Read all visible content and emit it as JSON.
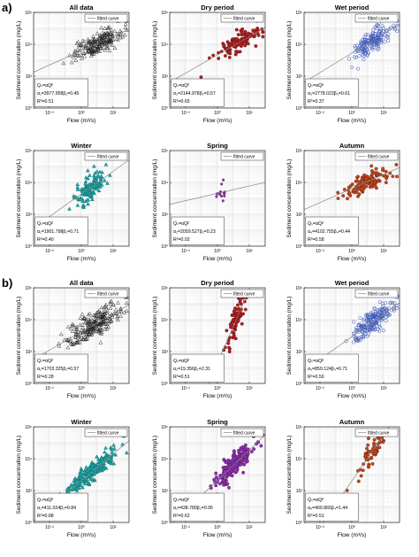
{
  "figure": {
    "panel_labels": [
      "a)",
      "b)"
    ],
    "ylabel": "Sediment concentration (mg/L)",
    "xlabel": "Flow (m³/s)",
    "legend_label": "fitted curve",
    "y_ticks": [
      "10⁰",
      "10²",
      "10⁴",
      "10⁶"
    ],
    "x_ticks": [
      "10⁻²",
      "10⁰",
      "10²"
    ],
    "formula_text": "Qₛ=αQᵝ"
  },
  "colors": {
    "all": "#222222",
    "dry": "#b01e1e",
    "wet": "#3a55b8",
    "winter": "#21a8a8",
    "spring": "#8a2fb8",
    "autumn": "#c0451a",
    "fit": "#888888"
  },
  "chart_data": [
    {
      "type": "scatter",
      "group": "a",
      "title": "All data",
      "marker": "triangle-open",
      "color": "all",
      "xlim": [
        -3,
        3
      ],
      "ylim": [
        0,
        6
      ],
      "log_axes": true,
      "grid": true,
      "legend": "top-right",
      "alpha": 3977.958,
      "beta": 0.45,
      "r2": 0.51,
      "alpha_text": "α₁=3977.958",
      "beta_text": "β₁=0.45",
      "r2_text": "R²=0.51",
      "cloud": {
        "x_center": 1.0,
        "x_spread": 1.4,
        "y_sd": 0.32,
        "n": 220,
        "y_cap": 5.45
      }
    },
    {
      "type": "scatter",
      "group": "a",
      "title": "Dry period",
      "marker": "dot",
      "color": "dry",
      "xlim": [
        -3,
        3
      ],
      "ylim": [
        0,
        6
      ],
      "log_axes": true,
      "grid": true,
      "legend": "top-right",
      "alpha": 2144.978,
      "beta": 0.57,
      "r2": 0.65,
      "alpha_text": "α₂=2144.978",
      "beta_text": "β₂=0.57",
      "r2_text": "R²=0.65",
      "cloud": {
        "x_center": 1.3,
        "x_spread": 1.3,
        "y_sd": 0.3,
        "n": 110,
        "y_cap": 5.5
      }
    },
    {
      "type": "scatter",
      "group": "a",
      "title": "Wet period",
      "marker": "circle-open",
      "color": "wet",
      "xlim": [
        -3,
        3
      ],
      "ylim": [
        0,
        6
      ],
      "log_axes": true,
      "grid": true,
      "legend": "top-right",
      "alpha": 2778.023,
      "beta": 0.61,
      "r2": 0.37,
      "alpha_text": "α₃=2778.023",
      "beta_text": "β₃=0.61",
      "r2_text": "R²=0.37",
      "cloud": {
        "x_center": 1.3,
        "x_spread": 1.1,
        "y_sd": 0.35,
        "n": 170,
        "y_cap": 5.45
      }
    },
    {
      "type": "scatter",
      "group": "a",
      "title": "Winter",
      "marker": "triangle-filled",
      "color": "winter",
      "xlim": [
        -3,
        3
      ],
      "ylim": [
        0,
        6
      ],
      "log_axes": true,
      "grid": true,
      "legend": "top-right",
      "alpha": 1901.798,
      "beta": 0.71,
      "r2": 0.4,
      "alpha_text": "α₁=1901.798",
      "beta_text": "β₁=0.71",
      "r2_text": "R²=0.40",
      "cloud": {
        "x_center": 0.6,
        "x_spread": 0.9,
        "y_sd": 0.4,
        "n": 130,
        "y_cap": 5.3
      }
    },
    {
      "type": "scatter",
      "group": "a",
      "title": "Spring",
      "marker": "dot-small",
      "color": "spring",
      "xlim": [
        -3,
        3
      ],
      "ylim": [
        0,
        6
      ],
      "log_axes": true,
      "grid": true,
      "legend": "top-right",
      "alpha": 2059.527,
      "beta": 0.23,
      "r2": 0.02,
      "alpha_text": "α₂=2059.527",
      "beta_text": "β₂=0.23",
      "r2_text": "R²=0.02",
      "cloud": {
        "x_center": 0.2,
        "x_spread": 0.35,
        "y_sd": 0.3,
        "n": 14,
        "y_cap": 5.3
      }
    },
    {
      "type": "scatter",
      "group": "a",
      "title": "Autumn",
      "marker": "dot",
      "color": "autumn",
      "xlim": [
        -3,
        3
      ],
      "ylim": [
        0,
        6
      ],
      "log_axes": true,
      "grid": true,
      "legend": "top-right",
      "alpha": 4102.755,
      "beta": 0.44,
      "r2": 0.58,
      "alpha_text": "α₄=4102.755",
      "beta_text": "β₄=0.44",
      "r2_text": "R²=0.58",
      "cloud": {
        "x_center": 1.0,
        "x_spread": 1.5,
        "y_sd": 0.3,
        "n": 120,
        "y_cap": 5.5
      }
    },
    {
      "type": "scatter",
      "group": "b",
      "title": "All data",
      "marker": "triangle-open",
      "color": "all",
      "xlim": [
        -3,
        3
      ],
      "ylim": [
        0,
        6
      ],
      "log_axes": true,
      "grid": true,
      "legend": "top-right",
      "alpha": 1703.325,
      "beta": 0.57,
      "r2": 0.28,
      "alpha_text": "α₁=1703.325",
      "beta_text": "β₁=0.57",
      "r2_text": "R²=0.28",
      "cloud": {
        "x_center": 0.8,
        "x_spread": 1.6,
        "y_sd": 0.45,
        "n": 260,
        "y_cap": 5.5
      }
    },
    {
      "type": "scatter",
      "group": "b",
      "title": "Dry period",
      "marker": "dot",
      "color": "dry",
      "xlim": [
        -3,
        3
      ],
      "ylim": [
        0,
        6
      ],
      "log_axes": true,
      "grid": true,
      "legend": "top-right",
      "alpha": 19.356,
      "beta": 2.31,
      "r2": 0.51,
      "alpha_text": "α₂=19.356",
      "beta_text": "β₂=2.31",
      "r2_text": "R²=0.51",
      "cloud": {
        "x_center": 1.2,
        "x_spread": 0.55,
        "y_sd": 0.45,
        "n": 90,
        "y_cap": 5.6
      }
    },
    {
      "type": "scatter",
      "group": "b",
      "title": "Wet period",
      "marker": "circle-open",
      "color": "wet",
      "xlim": [
        -3,
        3
      ],
      "ylim": [
        0,
        6
      ],
      "log_axes": true,
      "grid": true,
      "legend": "top-right",
      "alpha": 859.124,
      "beta": 0.71,
      "r2": 0.5,
      "alpha_text": "α₃=859.124",
      "beta_text": "β₃=0.71",
      "r2_text": "R²=0.50",
      "cloud": {
        "x_center": 1.3,
        "x_spread": 1.2,
        "y_sd": 0.4,
        "n": 200,
        "y_cap": 5.5
      }
    },
    {
      "type": "scatter",
      "group": "b",
      "title": "Winter",
      "marker": "triangle-filled",
      "color": "winter",
      "xlim": [
        -3,
        3
      ],
      "ylim": [
        0,
        6
      ],
      "log_axes": true,
      "grid": true,
      "legend": "top-right",
      "alpha": 411.024,
      "beta": 0.84,
      "r2": 0.88,
      "alpha_text": "α₁=411.024",
      "beta_text": "β₁=0.84",
      "r2_text": "R²=0.88",
      "cloud": {
        "x_center": 0.6,
        "x_spread": 1.6,
        "y_sd": 0.3,
        "n": 220,
        "y_cap": 5.6
      }
    },
    {
      "type": "scatter",
      "group": "b",
      "title": "Spring",
      "marker": "dot",
      "color": "spring",
      "xlim": [
        -3,
        3
      ],
      "ylim": [
        0,
        6
      ],
      "log_axes": true,
      "grid": true,
      "legend": "top-right",
      "alpha": 438.789,
      "beta": 0.95,
      "r2": 0.62,
      "alpha_text": "α₂=438.789",
      "beta_text": "β₂=0.95",
      "r2_text": "R²=0.62",
      "cloud": {
        "x_center": 1.0,
        "x_spread": 1.1,
        "y_sd": 0.35,
        "n": 200,
        "y_cap": 5.5
      }
    },
    {
      "type": "scatter",
      "group": "b",
      "title": "Autumn",
      "marker": "dot",
      "color": "autumn",
      "xlim": [
        -3,
        3
      ],
      "ylim": [
        0,
        6
      ],
      "log_axes": true,
      "grid": true,
      "legend": "top-right",
      "alpha": 400.865,
      "beta": 1.44,
      "r2": 0.51,
      "alpha_text": "α₄=400.865",
      "beta_text": "β₄=1.44",
      "r2_text": "R²=0.51",
      "cloud": {
        "x_center": 1.3,
        "x_spread": 0.8,
        "y_sd": 0.4,
        "n": 60,
        "y_cap": 5.5
      }
    }
  ]
}
